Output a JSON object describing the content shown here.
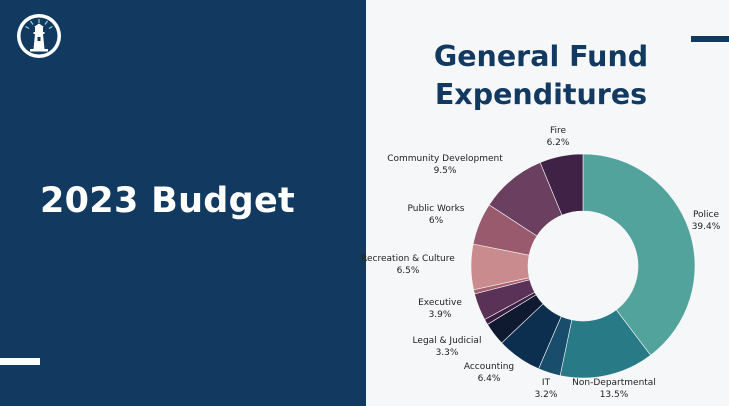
{
  "slide": {
    "heading": "2023 Budget",
    "logo_icon": "lighthouse-logo-icon"
  },
  "chart_data": {
    "type": "pie",
    "variant": "donut",
    "title_line1": "General Fund",
    "title_line2": "Expenditures",
    "legend": "none",
    "slices": [
      {
        "label": "Police",
        "display_value": "39.4%",
        "value": 39.4,
        "color": "#52a39c"
      },
      {
        "label": "Non-Departmental",
        "display_value": "13.5%",
        "value": 13.5,
        "color": "#287a86"
      },
      {
        "label": "IT",
        "display_value": "3.2%",
        "value": 3.2,
        "color": "#184d6b"
      },
      {
        "label": "Accounting",
        "display_value": "6.4%",
        "value": 6.4,
        "color": "#0c2f4f"
      },
      {
        "label": "Legal & Judicial",
        "display_value": "3.3%",
        "value": 3.3,
        "color": "#0f1a30"
      },
      {
        "label": "",
        "display_value": "",
        "value": 0.8,
        "color": "#3a1d42"
      },
      {
        "label": "Executive",
        "display_value": "3.9%",
        "value": 3.9,
        "color": "#5a3258"
      },
      {
        "label": "",
        "display_value": "",
        "value": 0.6,
        "color": "#a8616e"
      },
      {
        "label": "Recreation & Culture",
        "display_value": "6.5%",
        "value": 6.5,
        "color": "#c98b8d"
      },
      {
        "label": "Public Works",
        "display_value": "6%",
        "value": 6.0,
        "color": "#9a5a6d"
      },
      {
        "label": "Community Development",
        "display_value": "9.5%",
        "value": 9.5,
        "color": "#6a3f5f"
      },
      {
        "label": "Fire",
        "display_value": "6.2%",
        "value": 6.2,
        "color": "#3f2245"
      }
    ]
  }
}
